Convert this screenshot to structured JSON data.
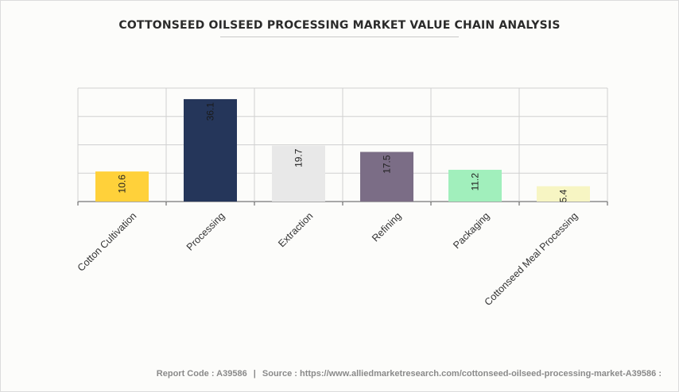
{
  "title": "COTTONSEED OILSEED PROCESSING MARKET VALUE CHAIN ANALYSIS",
  "footer": {
    "report_code": "Report Code : A39586",
    "separator": "|",
    "source": "Source : https://www.alliedmarketresearch.com/cottonseed-oilseed-processing-market-A39586 :"
  },
  "chart_data": {
    "type": "bar",
    "title": "COTTONSEED OILSEED PROCESSING MARKET VALUE CHAIN ANALYSIS",
    "categories": [
      "Cotton Cultivation",
      "Processing",
      "Extraction",
      "Refining",
      "Packaging",
      "Cottonseed Meal Processing"
    ],
    "values": [
      10.6,
      36.1,
      19.7,
      17.5,
      11.2,
      5.4
    ],
    "colors": [
      "#ffd13a",
      "#25365a",
      "#e8e8e8",
      "#7b6d86",
      "#a1efbc",
      "#f7f5c3"
    ],
    "ylim": [
      0,
      40
    ],
    "grid": true,
    "data_labels": true,
    "legend": "none",
    "xlabel": "",
    "ylabel": ""
  }
}
